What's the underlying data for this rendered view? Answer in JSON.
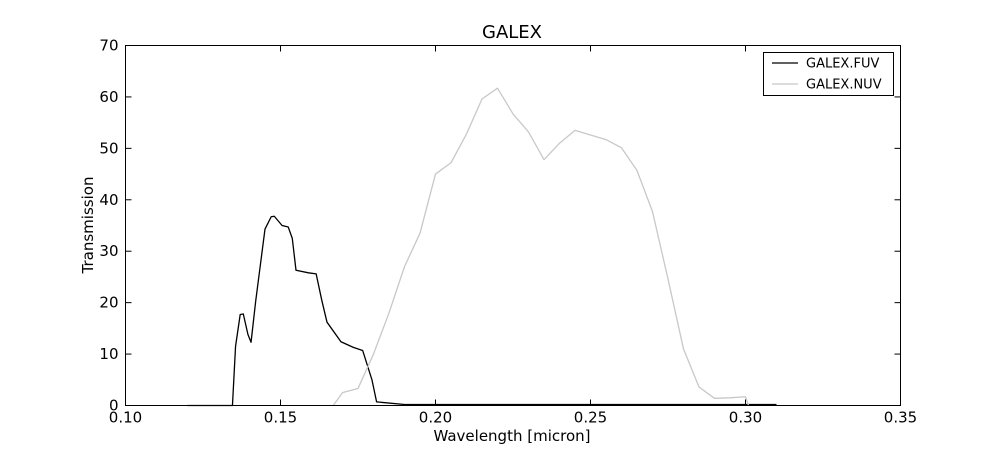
{
  "chart_data": {
    "type": "line",
    "title": "GALEX",
    "xlabel": "Wavelength [micron]",
    "ylabel": "Transmission",
    "xlim": [
      0.1,
      0.35
    ],
    "ylim": [
      0,
      70
    ],
    "xticks": [
      0.1,
      0.15,
      0.2,
      0.25,
      0.3,
      0.35
    ],
    "xtick_labels": [
      "0.10",
      "0.15",
      "0.20",
      "0.25",
      "0.30",
      "0.35"
    ],
    "yticks": [
      0,
      10,
      20,
      30,
      40,
      50,
      60,
      70
    ],
    "ytick_labels": [
      "0",
      "10",
      "20",
      "30",
      "40",
      "50",
      "60",
      "70"
    ],
    "grid": false,
    "legend_position": "top-right",
    "series": [
      {
        "name": "GALEX.FUV",
        "color": "#000000",
        "x": [
          0.12,
          0.1345,
          0.1355,
          0.137,
          0.138,
          0.1395,
          0.1405,
          0.142,
          0.1435,
          0.145,
          0.147,
          0.148,
          0.1505,
          0.1525,
          0.1538,
          0.155,
          0.159,
          0.1615,
          0.1633,
          0.165,
          0.1695,
          0.1735,
          0.1765,
          0.1795,
          0.181,
          0.19,
          0.31
        ],
        "y": [
          0,
          0,
          11.5,
          17.7,
          17.8,
          13.8,
          12.3,
          20.3,
          27.3,
          34.3,
          36.7,
          36.8,
          35.0,
          34.7,
          32.5,
          26.3,
          25.8,
          25.6,
          20.5,
          16.2,
          12.4,
          11.3,
          10.7,
          5.0,
          0.7,
          0.2,
          0.2
        ]
      },
      {
        "name": "GALEX.NUV",
        "color": "#c8c8c8",
        "x": [
          0.167,
          0.17,
          0.175,
          0.18,
          0.185,
          0.19,
          0.195,
          0.2,
          0.205,
          0.21,
          0.215,
          0.22,
          0.225,
          0.23,
          0.235,
          0.24,
          0.245,
          0.25,
          0.255,
          0.26,
          0.265,
          0.27,
          0.275,
          0.28,
          0.285,
          0.29,
          0.295,
          0.3,
          0.301
        ],
        "y": [
          0,
          2.5,
          3.3,
          10.0,
          18.0,
          27.0,
          33.5,
          45.0,
          47.2,
          52.8,
          59.6,
          61.7,
          56.7,
          53.2,
          47.8,
          51.0,
          53.5,
          52.6,
          51.7,
          50.1,
          45.7,
          37.7,
          24.6,
          11.0,
          3.6,
          1.4,
          1.5,
          1.7,
          0
        ]
      }
    ]
  }
}
